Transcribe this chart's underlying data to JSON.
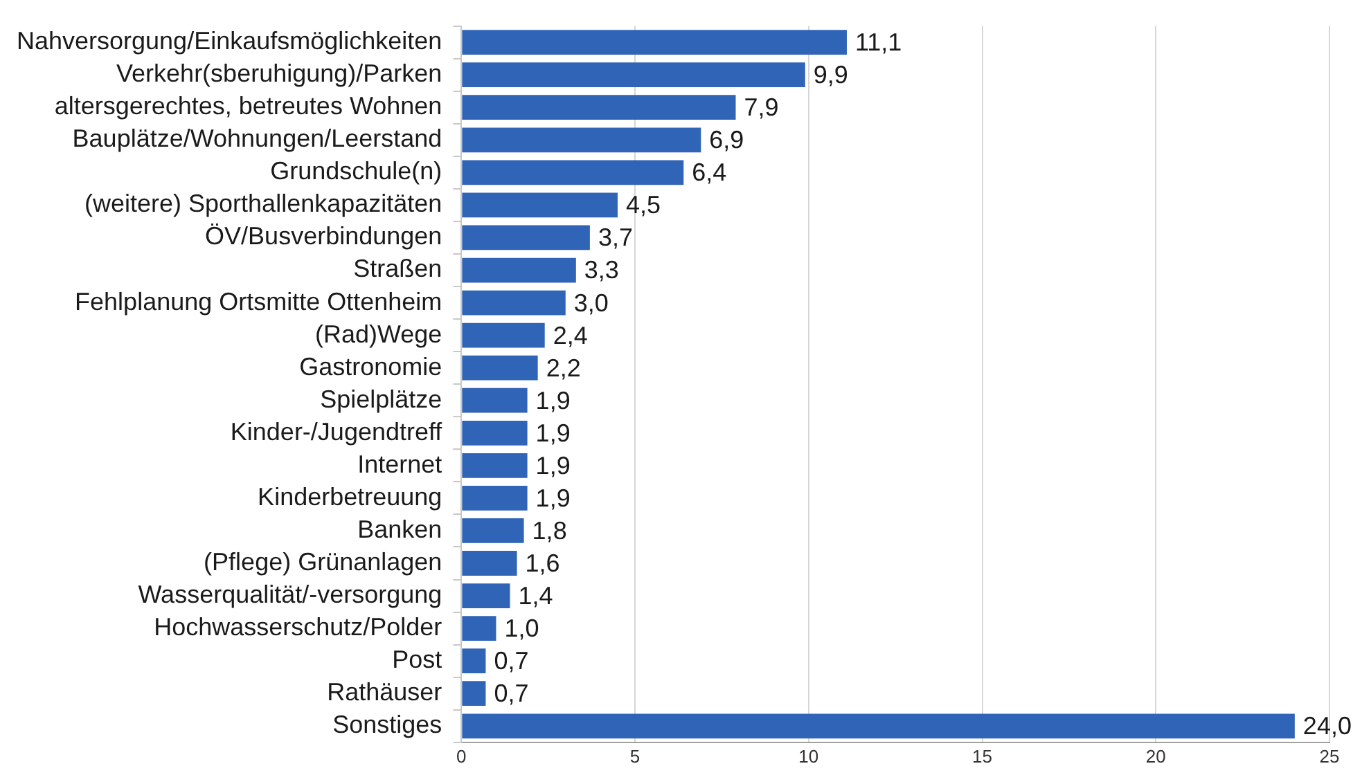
{
  "chart_data": {
    "type": "bar",
    "orientation": "horizontal",
    "categories": [
      "Nahversorgung/Einkaufsmöglichkeiten",
      "Verkehr(sberuhigung)/Parken",
      "altersgerechtes, betreutes Wohnen",
      "Bauplätze/Wohnungen/Leerstand",
      "Grundschule(n)",
      "(weitere) Sporthallenkapazitäten",
      "ÖV/Busverbindungen",
      "Straßen",
      "Fehlplanung Ortsmitte Ottenheim",
      "(Rad)Wege",
      "Gastronomie",
      "Spielplätze",
      "Kinder-/Jugendtreff",
      "Internet",
      "Kinderbetreuung",
      "Banken",
      "(Pflege) Grünanlagen",
      "Wasserqualität/-versorgung",
      "Hochwasserschutz/Polder",
      "Post",
      "Rathäuser",
      "Sonstiges"
    ],
    "values": [
      11.1,
      9.9,
      7.9,
      6.9,
      6.4,
      4.5,
      3.7,
      3.3,
      3.0,
      2.4,
      2.2,
      1.9,
      1.9,
      1.9,
      1.9,
      1.8,
      1.6,
      1.4,
      1.0,
      0.7,
      0.7,
      24.0
    ],
    "value_labels": [
      "11,1",
      "9,9",
      "7,9",
      "6,9",
      "6,4",
      "4,5",
      "3,7",
      "3,3",
      "3,0",
      "2,4",
      "2,2",
      "1,9",
      "1,9",
      "1,9",
      "1,9",
      "1,8",
      "1,6",
      "1,4",
      "1,0",
      "0,7",
      "0,7",
      "24,0"
    ],
    "color": "#3064b6",
    "xlim": [
      0,
      25
    ],
    "xticks": [
      0,
      5,
      10,
      15,
      20,
      25
    ],
    "grid": "x"
  }
}
